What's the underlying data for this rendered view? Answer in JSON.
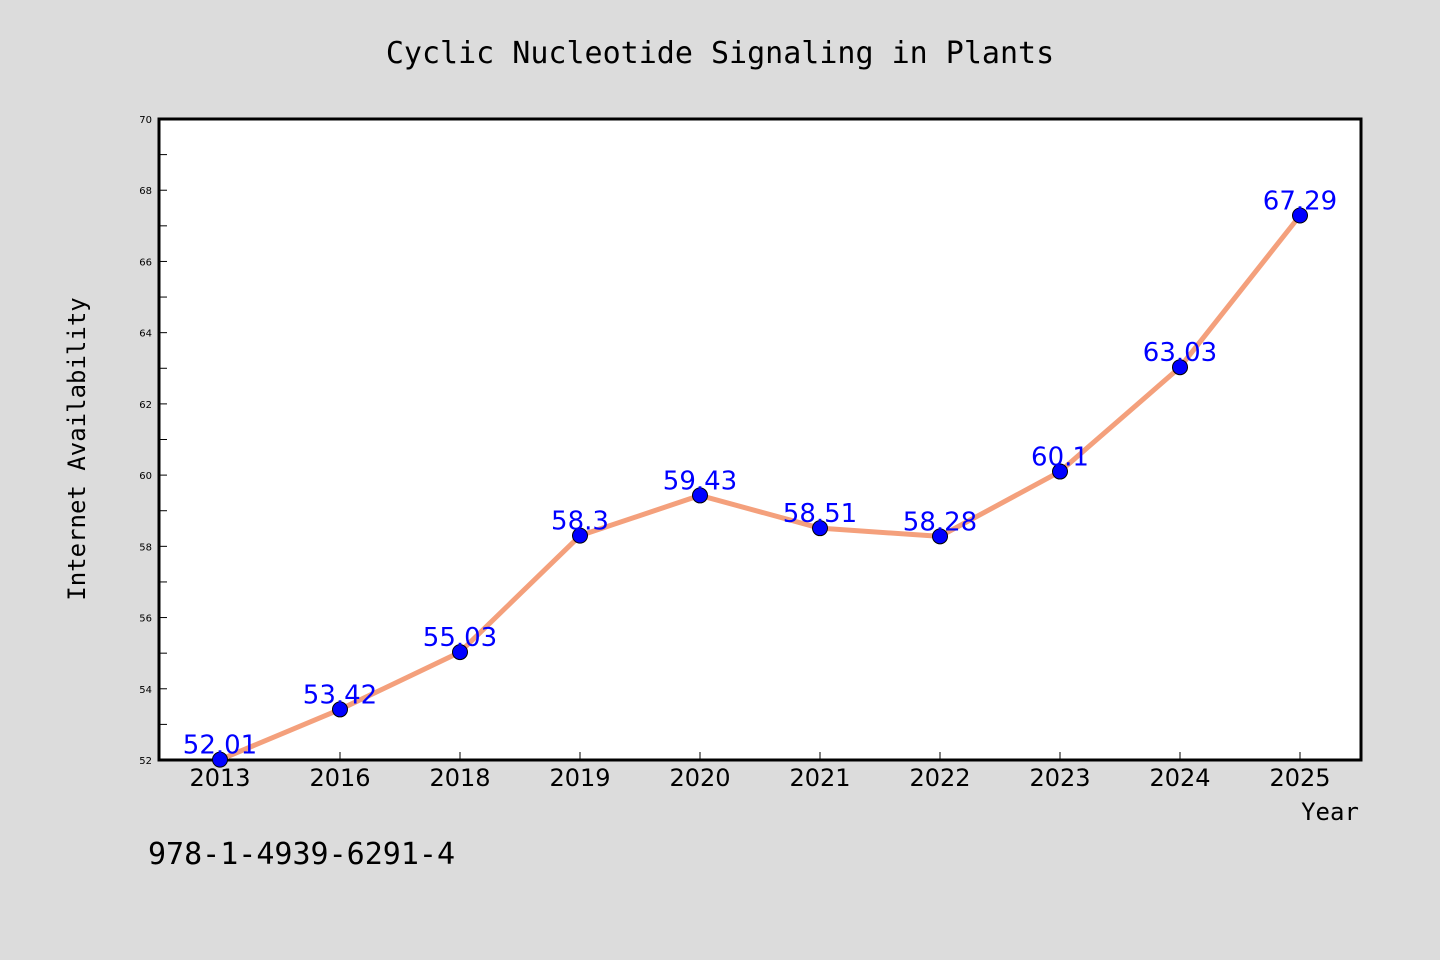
{
  "chart_data": {
    "type": "line",
    "title": "Cyclic Nucleotide Signaling in Plants",
    "xlabel": "Year",
    "ylabel": "Internet Availability",
    "categories": [
      "2013",
      "2016",
      "2018",
      "2019",
      "2020",
      "2021",
      "2022",
      "2023",
      "2024",
      "2025"
    ],
    "series": [
      {
        "values": [
          52.01,
          53.42,
          55.03,
          58.3,
          59.43,
          58.51,
          58.28,
          60.1,
          63.03,
          67.29
        ],
        "data_labels": [
          "52.01",
          "53.42",
          "55.03",
          "58.3",
          "59.43",
          "58.51",
          "58.28",
          "60.1",
          "63.03",
          "67.29"
        ],
        "line_color": "#f4a07c",
        "marker_color": "#0000ff"
      }
    ],
    "ylim": [
      52,
      70
    ],
    "yticks": [
      "52",
      "54",
      "56",
      "58",
      "60",
      "62",
      "64",
      "66",
      "68",
      "70"
    ],
    "grid": false,
    "legend": "none"
  },
  "annotation": {
    "isbn": "978-1-4939-6291-4"
  },
  "colors": {
    "background": "#dcdcdc",
    "plot_background": "#ffffff",
    "label_color": "#0000ff"
  }
}
